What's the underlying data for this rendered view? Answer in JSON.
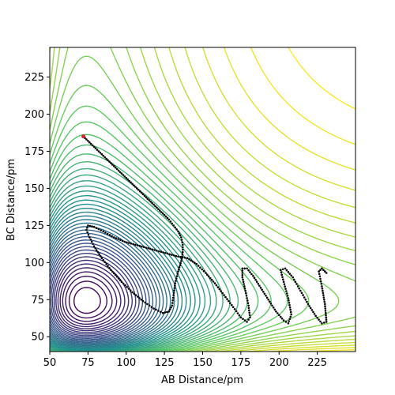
{
  "chart_data": {
    "type": "contour",
    "title": "",
    "xlabel": "AB Distance/pm",
    "ylabel": "BC Distance/pm",
    "xlim": [
      50,
      250
    ],
    "ylim": [
      40,
      245
    ],
    "xticks": [
      50,
      75,
      100,
      125,
      150,
      175,
      200,
      225
    ],
    "yticks": [
      50,
      75,
      100,
      125,
      150,
      175,
      200,
      225
    ],
    "grid": false,
    "colormap": [
      "#440154",
      "#3b528b",
      "#21918c",
      "#5ec962",
      "#fde725"
    ],
    "contour_levels": 48,
    "surface": {
      "type": "LEPS-like reaction surface",
      "well_depth_AB": 1.0,
      "well_depth_BC": 1.0,
      "r0": 74,
      "alpha": 0.019
    },
    "trajectory": {
      "color": "#000000",
      "start_marker_color": "#d62728",
      "points": [
        [
          72,
          185
        ],
        [
          76,
          181
        ],
        [
          80,
          177
        ],
        [
          84,
          173
        ],
        [
          88,
          169
        ],
        [
          92,
          165
        ],
        [
          96,
          161
        ],
        [
          100,
          157
        ],
        [
          104,
          153
        ],
        [
          108,
          149
        ],
        [
          112,
          145
        ],
        [
          116,
          141
        ],
        [
          120,
          137
        ],
        [
          124,
          133
        ],
        [
          128,
          129
        ],
        [
          131,
          125
        ],
        [
          134,
          121
        ],
        [
          136,
          117
        ],
        [
          137,
          112
        ],
        [
          137,
          107
        ],
        [
          136,
          101
        ],
        [
          134,
          94
        ],
        [
          132,
          86
        ],
        [
          131,
          78
        ],
        [
          130,
          71
        ],
        [
          128,
          67
        ],
        [
          124,
          66
        ],
        [
          118,
          69
        ],
        [
          111,
          74
        ],
        [
          104,
          80
        ],
        [
          97,
          87
        ],
        [
          90,
          95
        ],
        [
          84,
          103
        ],
        [
          79,
          111
        ],
        [
          76,
          117
        ],
        [
          74,
          122
        ],
        [
          75,
          125
        ],
        [
          79,
          124
        ],
        [
          85,
          121
        ],
        [
          92,
          117
        ],
        [
          99,
          114
        ],
        [
          106,
          112
        ],
        [
          113,
          110
        ],
        [
          120,
          108
        ],
        [
          127,
          106
        ],
        [
          134,
          104
        ],
        [
          140,
          103
        ],
        [
          146,
          99
        ],
        [
          152,
          93
        ],
        [
          158,
          86
        ],
        [
          164,
          78
        ],
        [
          170,
          70
        ],
        [
          175,
          63
        ],
        [
          179,
          60
        ],
        [
          181,
          63
        ],
        [
          180,
          71
        ],
        [
          178,
          81
        ],
        [
          176,
          90
        ],
        [
          176,
          96
        ],
        [
          179,
          96
        ],
        [
          183,
          91
        ],
        [
          188,
          83
        ],
        [
          193,
          75
        ],
        [
          198,
          67
        ],
        [
          203,
          61
        ],
        [
          206,
          59
        ],
        [
          208,
          65
        ],
        [
          206,
          76
        ],
        [
          203,
          87
        ],
        [
          201,
          95
        ],
        [
          204,
          96
        ],
        [
          209,
          90
        ],
        [
          214,
          81
        ],
        [
          219,
          72
        ],
        [
          224,
          64
        ],
        [
          228,
          59
        ],
        [
          231,
          60
        ],
        [
          230,
          72
        ],
        [
          228,
          84
        ],
        [
          226,
          94
        ],
        [
          228,
          96
        ],
        [
          232,
          92
        ]
      ]
    }
  }
}
